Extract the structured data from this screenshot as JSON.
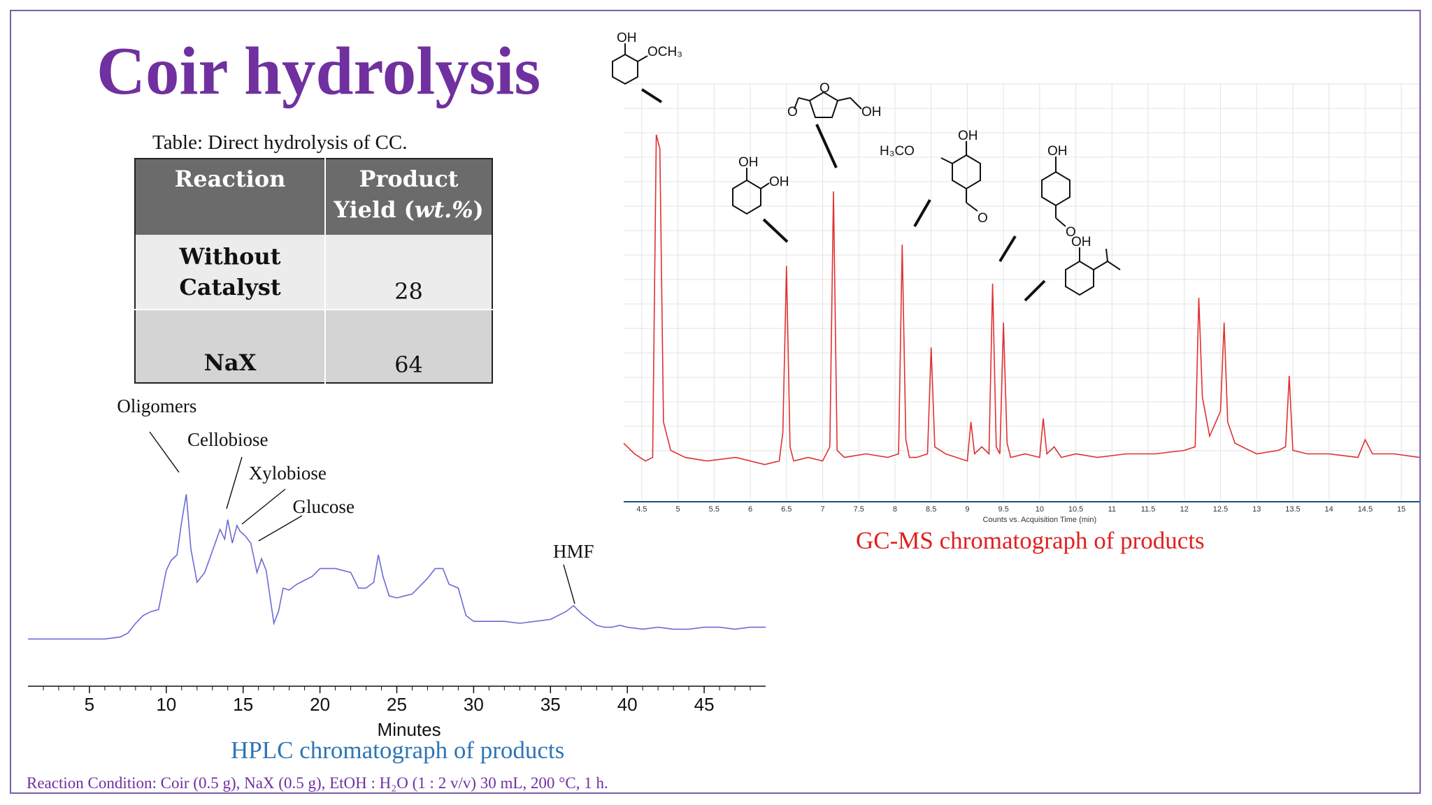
{
  "slide": {
    "title": "Coir hydrolysis",
    "condition": "Reaction Condition: Coir (0.5 g), NaX (0.5 g), EtOH : H₂O (1 : 2 v/v) 30 mL, 200 °C, 1 h."
  },
  "table": {
    "caption": "Table: Direct hydrolysis of CC.",
    "headers": [
      "Reaction",
      "Product Yield (wt.%)"
    ],
    "header_line1": [
      "Reaction",
      "Product"
    ],
    "header_line2": [
      "",
      "Yield (wt.%)"
    ],
    "rows": [
      {
        "reaction_line1": "Without",
        "reaction_line2": "Catalyst",
        "reaction": "Without Catalyst",
        "yield": "28"
      },
      {
        "reaction_line1": "",
        "reaction_line2": "NaX",
        "reaction": "NaX",
        "yield": "64"
      }
    ]
  },
  "colors": {
    "title": "#7030a0",
    "hplc_trace": "#6b6bd6",
    "gcms_trace": "#e03030",
    "hplc_caption": "#2e75b6",
    "gcms_caption": "#e02020",
    "condition": "#7030a0"
  },
  "chart_data": [
    {
      "type": "line",
      "caption": "HPLC chromatograph of products",
      "xlabel": "Minutes",
      "ylabel": "",
      "xlim": [
        1,
        49
      ],
      "ylim": [
        0,
        100
      ],
      "xticks": [
        5,
        10,
        15,
        20,
        25,
        30,
        35,
        40,
        45
      ],
      "grid": false,
      "annotations": [
        {
          "text": "Oligomers",
          "x": 11.3
        },
        {
          "text": "Cellobiose",
          "x": 14.0
        },
        {
          "text": "Xylobiose",
          "x": 14.8
        },
        {
          "text": "Glucose",
          "x": 15.5
        },
        {
          "text": "HMF",
          "x": 36.5
        }
      ],
      "series": [
        {
          "x": [
            1,
            2,
            3,
            4,
            5,
            6,
            7,
            7.5,
            8,
            8.5,
            9,
            9.5,
            10,
            10.3,
            10.7,
            11.0,
            11.3,
            11.6,
            12.0,
            12.5,
            13.0,
            13.5,
            13.8,
            14.0,
            14.3,
            14.6,
            14.8,
            15.1,
            15.5,
            15.9,
            16.2,
            16.5,
            17.0,
            17.3,
            17.6,
            18.0,
            18.5,
            19.0,
            19.5,
            20.0,
            21.0,
            22.0,
            22.5,
            23.0,
            23.5,
            23.8,
            24.1,
            24.5,
            25.0,
            25.5,
            26.0,
            27.0,
            27.5,
            28.0,
            28.4,
            29.0,
            29.5,
            30.0,
            31.0,
            32.0,
            33.0,
            34.0,
            35.0,
            36.0,
            36.5,
            37.0,
            37.5,
            38.0,
            38.5,
            39.0,
            39.5,
            40.0,
            41.0,
            42.0,
            43.0,
            44.0,
            45.0,
            46.0,
            47.0,
            48.0,
            49.0
          ],
          "y": [
            2,
            2,
            2,
            2,
            2,
            2,
            3,
            5,
            10,
            14,
            16,
            17,
            37,
            42,
            45,
            62,
            76,
            48,
            31,
            36,
            47,
            58,
            53,
            63,
            51,
            60,
            57,
            55,
            51,
            36,
            43,
            37,
            10,
            16,
            28,
            27,
            30,
            32,
            34,
            38,
            38,
            36,
            28,
            28,
            31,
            45,
            34,
            24,
            23,
            24,
            25,
            33,
            38,
            38,
            30,
            28,
            14,
            11,
            11,
            11,
            10,
            11,
            12,
            16,
            19,
            15,
            12,
            9,
            8,
            8,
            9,
            8,
            7,
            8,
            7,
            7,
            8,
            8,
            7,
            8,
            8
          ]
        }
      ]
    },
    {
      "type": "line",
      "caption": "GC-MS chromatograph of products",
      "xlabel": "Counts vs. Acquisition Time (min)",
      "ylabel": "",
      "xlim": [
        4.25,
        15.25
      ],
      "ylim": [
        0,
        100
      ],
      "xticks": [
        "4.5",
        "5",
        "5.5",
        "6",
        "6.5",
        "7",
        "7.5",
        "8",
        "8.5",
        "9",
        "9.5",
        "10",
        "10.5",
        "11",
        "11.5",
        "12",
        "12.5",
        "13",
        "13.5",
        "14",
        "14.5",
        "15"
      ],
      "grid": true,
      "series": [
        {
          "x": [
            4.25,
            4.4,
            4.55,
            4.65,
            4.7,
            4.75,
            4.8,
            4.9,
            5.1,
            5.4,
            5.8,
            6.2,
            6.4,
            6.45,
            6.5,
            6.55,
            6.6,
            6.8,
            7.0,
            7.1,
            7.15,
            7.2,
            7.3,
            7.6,
            7.9,
            8.05,
            8.1,
            8.15,
            8.2,
            8.3,
            8.45,
            8.5,
            8.55,
            8.7,
            9.0,
            9.05,
            9.1,
            9.2,
            9.3,
            9.35,
            9.4,
            9.45,
            9.5,
            9.55,
            9.6,
            9.8,
            10.0,
            10.05,
            10.1,
            10.2,
            10.3,
            10.5,
            10.8,
            11.2,
            11.6,
            12.0,
            12.15,
            12.2,
            12.25,
            12.35,
            12.5,
            12.55,
            12.6,
            12.7,
            13.0,
            13.3,
            13.4,
            13.45,
            13.5,
            13.7,
            14.0,
            14.4,
            14.5,
            14.6,
            14.9,
            15.25
          ],
          "y": [
            9,
            6,
            4,
            5,
            96,
            92,
            15,
            7,
            5,
            4,
            5,
            3,
            4,
            12,
            59,
            8,
            4,
            5,
            4,
            8,
            80,
            7,
            5,
            6,
            5,
            6,
            65,
            10,
            5,
            5,
            6,
            36,
            8,
            6,
            4,
            15,
            6,
            8,
            6,
            54,
            8,
            6,
            43,
            9,
            5,
            6,
            5,
            16,
            6,
            8,
            5,
            6,
            5,
            6,
            6,
            7,
            8,
            50,
            22,
            11,
            18,
            43,
            15,
            9,
            6,
            7,
            8,
            28,
            7,
            6,
            6,
            5,
            10,
            6,
            6,
            5
          ]
        }
      ]
    }
  ]
}
